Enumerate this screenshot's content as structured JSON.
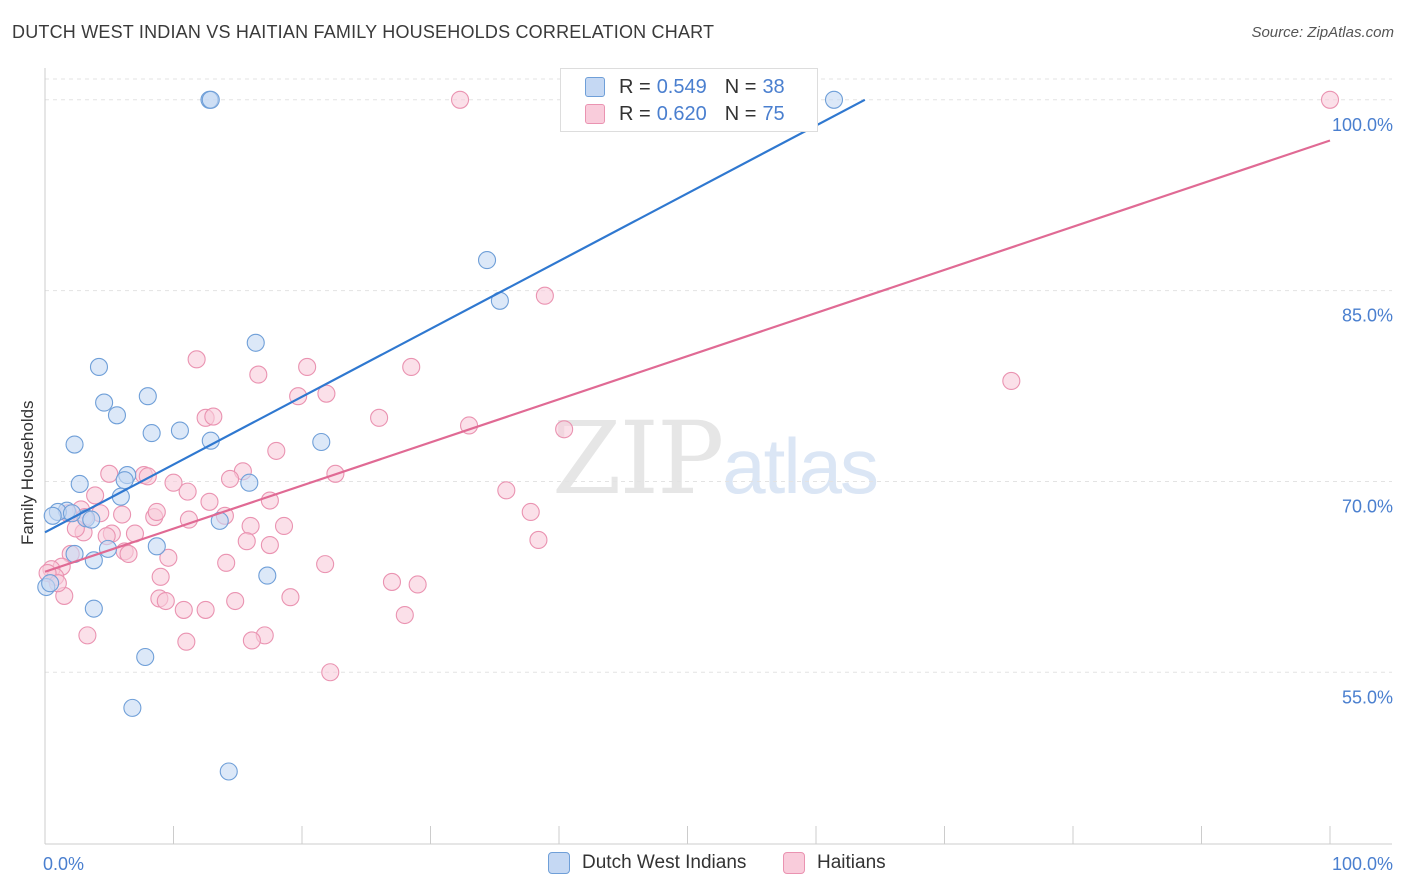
{
  "header": {
    "title": "DUTCH WEST INDIAN VS HAITIAN FAMILY HOUSEHOLDS CORRELATION CHART",
    "source": "Source: ZipAtlas.com"
  },
  "watermark": {
    "zip": "ZIP",
    "atlas": "atlas"
  },
  "legend": {
    "series1": {
      "r_label": "R =",
      "r_value": "0.549",
      "n_label": "N =",
      "n_value": "38"
    },
    "series2": {
      "r_label": "R =",
      "r_value": "0.620",
      "n_label": "N =",
      "n_value": "75"
    }
  },
  "colors": {
    "blue_fill": "#c5d8f3",
    "blue_stroke": "#6f9fd8",
    "blue_line": "#2f78d0",
    "pink_fill": "#f9ccdb",
    "pink_stroke": "#ea93b1",
    "pink_line": "#e06a94",
    "grid": "#e3e3e3",
    "tick_text": "#4a7fcf"
  },
  "chart_data": {
    "type": "scatter",
    "title": "DUTCH WEST INDIAN VS HAITIAN FAMILY HOUSEHOLDS CORRELATION CHART",
    "xlabel": "",
    "ylabel": "Family Households",
    "xlim": [
      0,
      100
    ],
    "ylim": [
      41.5,
      102.5
    ],
    "y_ticks": [
      {
        "value": 55,
        "label": "55.0%"
      },
      {
        "value": 70,
        "label": "70.0%"
      },
      {
        "value": 85,
        "label": "85.0%"
      },
      {
        "value": 100,
        "label": "100.0%"
      }
    ],
    "x_tick_labels": [
      {
        "value": 0,
        "label": "0.0%"
      },
      {
        "value": 100,
        "label": "100.0%"
      }
    ],
    "x_minor_ticks": [
      10,
      20,
      30,
      40,
      50,
      60,
      70,
      80,
      90,
      100
    ],
    "grid": true,
    "series": [
      {
        "name": "Dutch West Indians",
        "R": 0.549,
        "N": 38,
        "trend": {
          "x0": 0,
          "y0": 66.0,
          "x1": 63.8,
          "y1": 100.0
        },
        "points": [
          [
            12.8,
            100
          ],
          [
            12.9,
            100
          ],
          [
            61.4,
            100
          ],
          [
            34.4,
            87.4
          ],
          [
            35.4,
            84.2
          ],
          [
            16.4,
            80.9
          ],
          [
            4.2,
            79.0
          ],
          [
            8.0,
            76.7
          ],
          [
            4.6,
            76.2
          ],
          [
            5.6,
            75.2
          ],
          [
            8.3,
            73.8
          ],
          [
            10.5,
            74.0
          ],
          [
            12.9,
            73.2
          ],
          [
            2.3,
            72.9
          ],
          [
            21.5,
            73.1
          ],
          [
            6.4,
            70.5
          ],
          [
            6.2,
            70.1
          ],
          [
            15.9,
            69.9
          ],
          [
            2.7,
            69.8
          ],
          [
            5.9,
            68.8
          ],
          [
            1.7,
            67.7
          ],
          [
            1.0,
            67.6
          ],
          [
            0.6,
            67.3
          ],
          [
            3.2,
            67.1
          ],
          [
            3.6,
            67.0
          ],
          [
            13.6,
            66.9
          ],
          [
            2.1,
            67.5
          ],
          [
            4.9,
            64.7
          ],
          [
            8.7,
            64.9
          ],
          [
            2.3,
            64.3
          ],
          [
            3.8,
            63.8
          ],
          [
            17.3,
            62.6
          ],
          [
            0.1,
            61.7
          ],
          [
            3.8,
            60.0
          ],
          [
            7.8,
            56.2
          ],
          [
            6.8,
            52.2
          ],
          [
            14.3,
            47.2
          ],
          [
            0.4,
            62.0
          ]
        ]
      },
      {
        "name": "Haitians",
        "R": 0.62,
        "N": 75,
        "trend": {
          "x0": 0,
          "y0": 62.9,
          "x1": 100,
          "y1": 96.8
        },
        "points": [
          [
            32.3,
            100
          ],
          [
            100,
            100
          ],
          [
            38.9,
            84.6
          ],
          [
            75.2,
            77.9
          ],
          [
            11.8,
            79.6
          ],
          [
            20.4,
            79.0
          ],
          [
            28.5,
            79.0
          ],
          [
            16.6,
            78.4
          ],
          [
            21.9,
            76.9
          ],
          [
            19.7,
            76.7
          ],
          [
            26.0,
            75.0
          ],
          [
            12.5,
            75.0
          ],
          [
            13.1,
            75.1
          ],
          [
            33.0,
            74.4
          ],
          [
            40.4,
            74.1
          ],
          [
            18.0,
            72.4
          ],
          [
            5.0,
            70.6
          ],
          [
            7.7,
            70.5
          ],
          [
            8.0,
            70.4
          ],
          [
            15.4,
            70.8
          ],
          [
            22.6,
            70.6
          ],
          [
            14.4,
            70.2
          ],
          [
            10.0,
            69.9
          ],
          [
            11.1,
            69.2
          ],
          [
            35.9,
            69.3
          ],
          [
            3.9,
            68.9
          ],
          [
            12.8,
            68.4
          ],
          [
            17.5,
            68.5
          ],
          [
            2.8,
            67.8
          ],
          [
            4.3,
            67.5
          ],
          [
            6.0,
            67.4
          ],
          [
            8.5,
            67.2
          ],
          [
            11.2,
            67.0
          ],
          [
            14.0,
            67.3
          ],
          [
            8.7,
            67.6
          ],
          [
            37.8,
            67.6
          ],
          [
            3.1,
            67.2
          ],
          [
            1.8,
            67.5
          ],
          [
            5.2,
            65.9
          ],
          [
            4.8,
            65.7
          ],
          [
            7.0,
            65.9
          ],
          [
            3.0,
            66.0
          ],
          [
            16.0,
            66.5
          ],
          [
            18.6,
            66.5
          ],
          [
            15.7,
            65.3
          ],
          [
            17.5,
            65.0
          ],
          [
            38.4,
            65.4
          ],
          [
            2.0,
            64.3
          ],
          [
            6.2,
            64.5
          ],
          [
            6.5,
            64.3
          ],
          [
            9.6,
            64.0
          ],
          [
            14.1,
            63.6
          ],
          [
            21.8,
            63.5
          ],
          [
            1.3,
            63.3
          ],
          [
            0.5,
            63.1
          ],
          [
            0.8,
            62.5
          ],
          [
            27.0,
            62.1
          ],
          [
            29.0,
            61.9
          ],
          [
            1.5,
            61.0
          ],
          [
            8.9,
            60.8
          ],
          [
            9.4,
            60.6
          ],
          [
            14.8,
            60.6
          ],
          [
            19.1,
            60.9
          ],
          [
            10.8,
            59.9
          ],
          [
            12.5,
            59.9
          ],
          [
            28.0,
            59.5
          ],
          [
            3.3,
            57.9
          ],
          [
            17.1,
            57.9
          ],
          [
            11.0,
            57.4
          ],
          [
            16.1,
            57.5
          ],
          [
            22.2,
            55.0
          ],
          [
            0.2,
            62.8
          ],
          [
            2.4,
            66.3
          ],
          [
            9.0,
            62.5
          ],
          [
            1.0,
            62.0
          ]
        ]
      }
    ]
  },
  "bottom_legend": {
    "item1": "Dutch West Indians",
    "item2": "Haitians"
  }
}
